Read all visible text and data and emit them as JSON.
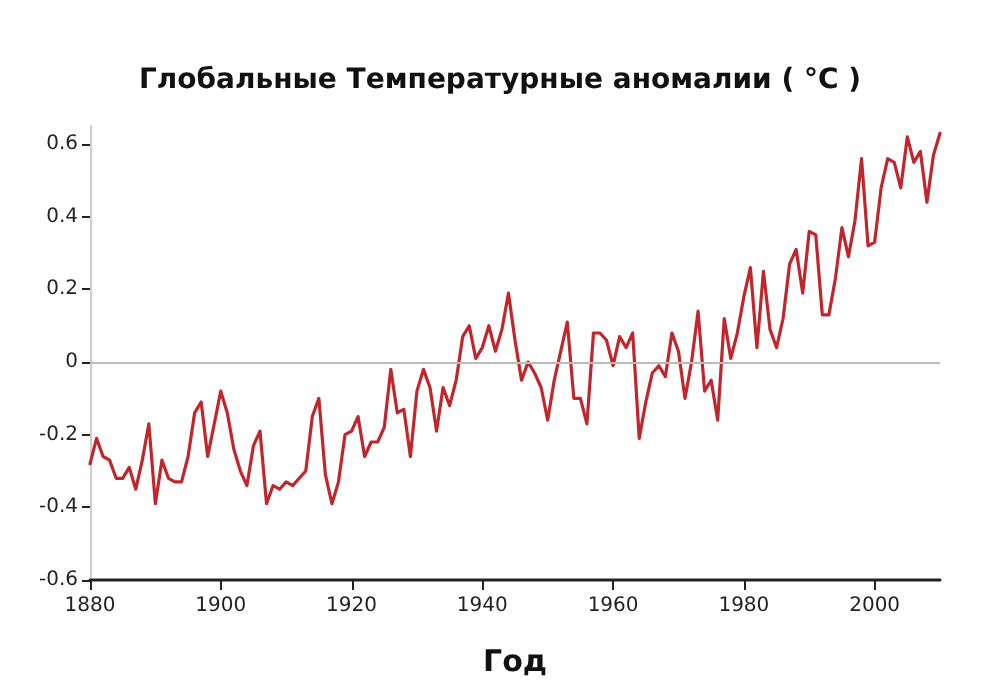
{
  "chart_data": {
    "type": "line",
    "title": "Глобальные Температурные аномалии ( °C )",
    "xlabel": "Год",
    "x": [
      1880,
      1881,
      1882,
      1883,
      1884,
      1885,
      1886,
      1887,
      1888,
      1889,
      1890,
      1891,
      1892,
      1893,
      1894,
      1895,
      1896,
      1897,
      1898,
      1899,
      1900,
      1901,
      1902,
      1903,
      1904,
      1905,
      1906,
      1907,
      1908,
      1909,
      1910,
      1911,
      1912,
      1913,
      1914,
      1915,
      1916,
      1917,
      1918,
      1919,
      1920,
      1921,
      1922,
      1923,
      1924,
      1925,
      1926,
      1927,
      1928,
      1929,
      1930,
      1931,
      1932,
      1933,
      1934,
      1935,
      1936,
      1937,
      1938,
      1939,
      1940,
      1941,
      1942,
      1943,
      1944,
      1945,
      1946,
      1947,
      1948,
      1949,
      1950,
      1951,
      1952,
      1953,
      1954,
      1955,
      1956,
      1957,
      1958,
      1959,
      1960,
      1961,
      1962,
      1963,
      1964,
      1965,
      1966,
      1967,
      1968,
      1969,
      1970,
      1971,
      1972,
      1973,
      1974,
      1975,
      1976,
      1977,
      1978,
      1979,
      1980,
      1981,
      1982,
      1983,
      1984,
      1985,
      1986,
      1987,
      1988,
      1989,
      1990,
      1991,
      1992,
      1993,
      1994,
      1995,
      1996,
      1997,
      1998,
      1999,
      2000,
      2001,
      2002,
      2003,
      2004,
      2005,
      2006,
      2007,
      2008,
      2009,
      2010
    ],
    "series": [
      {
        "color": "#c0272d",
        "values": [
          -0.28,
          -0.21,
          -0.26,
          -0.27,
          -0.32,
          -0.32,
          -0.29,
          -0.35,
          -0.27,
          -0.17,
          -0.39,
          -0.27,
          -0.32,
          -0.33,
          -0.33,
          -0.26,
          -0.14,
          -0.11,
          -0.26,
          -0.17,
          -0.08,
          -0.14,
          -0.24,
          -0.3,
          -0.34,
          -0.23,
          -0.19,
          -0.39,
          -0.34,
          -0.35,
          -0.33,
          -0.34,
          -0.32,
          -0.3,
          -0.15,
          -0.1,
          -0.31,
          -0.39,
          -0.33,
          -0.2,
          -0.19,
          -0.15,
          -0.26,
          -0.22,
          -0.22,
          -0.18,
          -0.02,
          -0.14,
          -0.13,
          -0.26,
          -0.08,
          -0.02,
          -0.07,
          -0.19,
          -0.07,
          -0.12,
          -0.05,
          0.07,
          0.1,
          0.01,
          0.04,
          0.1,
          0.03,
          0.09,
          0.19,
          0.06,
          -0.05,
          0.0,
          -0.03,
          -0.07,
          -0.16,
          -0.05,
          0.03,
          0.11,
          -0.1,
          -0.1,
          -0.17,
          0.08,
          0.08,
          0.06,
          -0.01,
          0.07,
          0.04,
          0.08,
          -0.21,
          -0.11,
          -0.03,
          -0.01,
          -0.04,
          0.08,
          0.03,
          -0.1,
          0.0,
          0.14,
          -0.08,
          -0.05,
          -0.16,
          0.12,
          0.01,
          0.08,
          0.18,
          0.26,
          0.04,
          0.25,
          0.09,
          0.04,
          0.12,
          0.27,
          0.31,
          0.19,
          0.36,
          0.35,
          0.13,
          0.13,
          0.23,
          0.37,
          0.29,
          0.39,
          0.56,
          0.32,
          0.33,
          0.48,
          0.56,
          0.55,
          0.48,
          0.62,
          0.55,
          0.58,
          0.44,
          0.57,
          0.63
        ]
      }
    ],
    "xlim": [
      1880,
      2010
    ],
    "xticks": [
      1880,
      1900,
      1920,
      1940,
      1960,
      1980,
      2000
    ],
    "ylim": [
      -0.6,
      0.65
    ],
    "yticks": [
      -0.6,
      -0.4,
      -0.2,
      0,
      0.2,
      0.4,
      0.6
    ],
    "ref_lines": [
      {
        "axis": "y",
        "value": 0,
        "color": "#bbbbbb"
      }
    ],
    "grid": false,
    "marker": "none",
    "line_style": "solid"
  }
}
